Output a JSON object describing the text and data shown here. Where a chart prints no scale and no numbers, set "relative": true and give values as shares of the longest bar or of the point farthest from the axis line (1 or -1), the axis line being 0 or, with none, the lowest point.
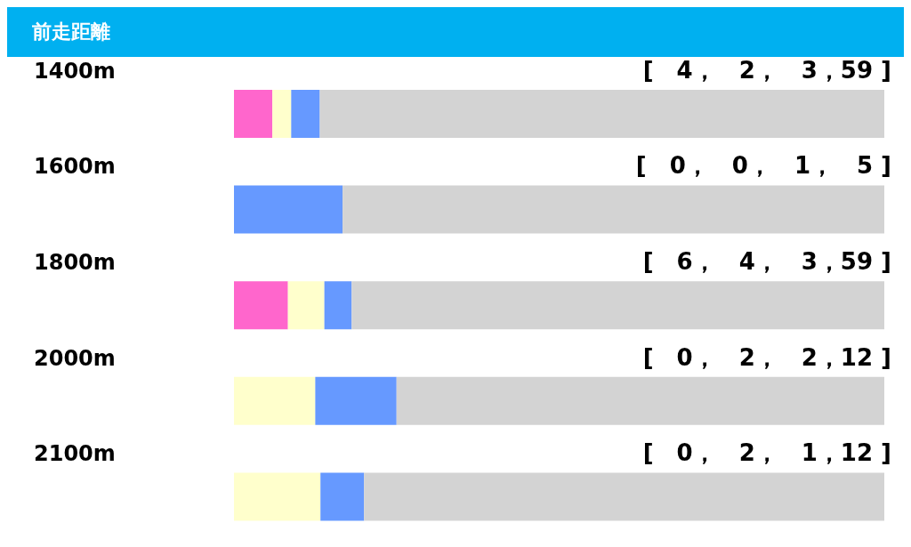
{
  "chart_data": {
    "type": "bar",
    "title": "前走距離",
    "orientation": "horizontal",
    "stacked": true,
    "relative": true,
    "categories": [
      "1400m",
      "1600m",
      "1800m",
      "2000m",
      "2100m"
    ],
    "series": [
      {
        "color": "#ff66cc",
        "values": [
          0.059,
          0,
          0.083,
          0,
          0
        ]
      },
      {
        "color": "#ffffcc",
        "values": [
          0.029,
          0,
          0.056,
          0.125,
          0.133
        ]
      },
      {
        "color": "#6699ff",
        "values": [
          0.044,
          0.167,
          0.042,
          0.125,
          0.067
        ]
      },
      {
        "color": "#d3d3d3",
        "values": [
          0.868,
          0.833,
          0.819,
          0.75,
          0.8
        ]
      }
    ],
    "annotations": [
      "[　4，　2，　3，59 ]",
      "[　0，　0，　1，　5 ]",
      "[　6，　4，　3，59 ]",
      "[　0，　2，　2，12 ]",
      "[　0，　2，　1，12 ]"
    ],
    "grid": false,
    "legend": false
  }
}
